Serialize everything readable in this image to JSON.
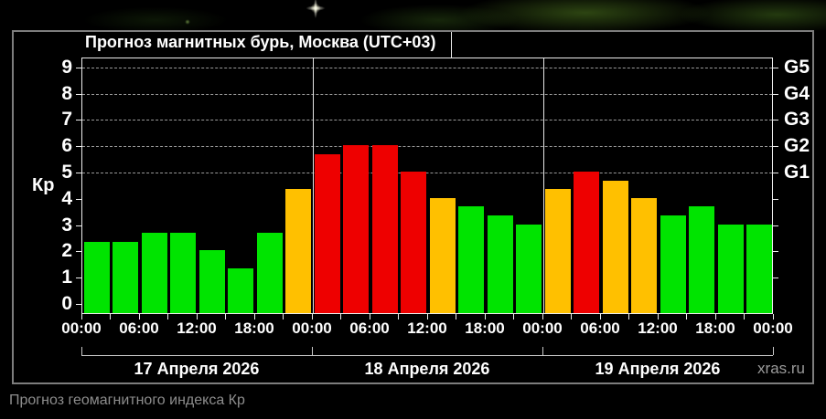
{
  "header": {
    "title": "Прогноз магнитных бурь, Москва (UTC+03)"
  },
  "footer": {
    "caption": "Прогноз геомагнитного индекса Кр",
    "watermark": "xras.ru"
  },
  "chart_data": {
    "type": "bar",
    "title": "Прогноз магнитных бурь, Москва (UTC+03)",
    "ylabel": "Кр",
    "xlabel": "",
    "ylim": [
      0,
      9
    ],
    "y_ticks": [
      0,
      1,
      2,
      3,
      4,
      5,
      6,
      7,
      8,
      9
    ],
    "right_axis": [
      {
        "value": 5,
        "label": "G1"
      },
      {
        "value": 6,
        "label": "G2"
      },
      {
        "value": 7,
        "label": "G3"
      },
      {
        "value": 8,
        "label": "G4"
      },
      {
        "value": 9,
        "label": "G5"
      }
    ],
    "gridlines_at": [
      5,
      6,
      7,
      8,
      9
    ],
    "gridline_style": "dashed",
    "grid": "horizontal dashed lines at storm levels only",
    "legend_position": "none",
    "bar_interval_hours": 3,
    "x_tick_labels": [
      "00:00",
      "06:00",
      "12:00",
      "18:00",
      "00:00",
      "06:00",
      "12:00",
      "18:00",
      "00:00",
      "06:00",
      "12:00",
      "18:00",
      "00:00"
    ],
    "days": [
      {
        "date": "17 Апреля 2026",
        "values": [
          2.33,
          2.33,
          2.67,
          2.67,
          2.0,
          1.33,
          2.67,
          4.33
        ]
      },
      {
        "date": "18 Апреля 2026",
        "values": [
          5.67,
          6.0,
          6.0,
          5.0,
          4.0,
          3.67,
          3.33,
          3.0
        ]
      },
      {
        "date": "19 Апреля 2026",
        "values": [
          4.33,
          5.0,
          4.67,
          4.0,
          3.33,
          3.67,
          3.0,
          3.0
        ]
      }
    ],
    "colors": {
      "quiet_green": "#00e400",
      "active_orange": "#ffc000",
      "storm_red": "#ee0000"
    },
    "color_rule": "green: Kp<4, orange: 4<=Kp<5, red: Kp>=5"
  }
}
